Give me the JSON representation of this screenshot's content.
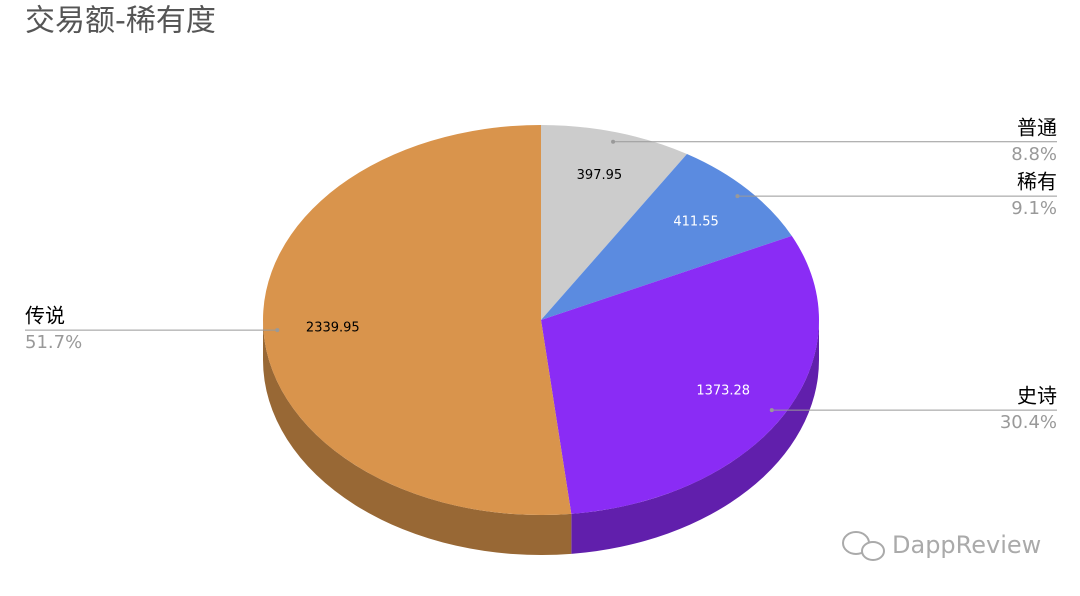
{
  "chart_data": {
    "type": "pie3d",
    "title": "交易额-稀有度",
    "categories": [
      "普通",
      "稀有",
      "史诗",
      "传说"
    ],
    "values": [
      397.95,
      411.55,
      1373.28,
      2339.95
    ],
    "percentages": [
      8.8,
      9.1,
      30.4,
      51.7
    ],
    "percentage_labels": [
      "8.8%",
      "9.1%",
      "30.4%",
      "51.7%"
    ],
    "colors": [
      "#cccccc",
      "#5b8be0",
      "#8a2cf5",
      "#d9944c"
    ],
    "watermark": "DappReview"
  }
}
